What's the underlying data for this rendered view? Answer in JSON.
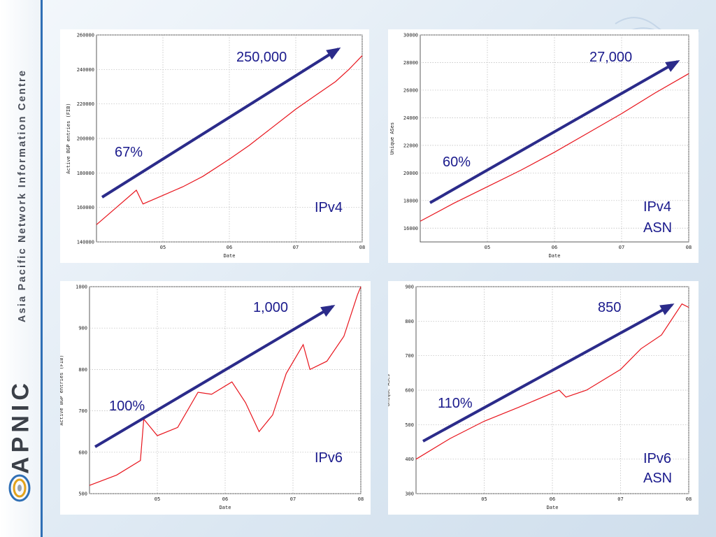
{
  "sidebar": {
    "organization": "Asia Pacific Network Information Centre",
    "brand": "APNIC",
    "accent_color": "#2f6fb5"
  },
  "colors": {
    "line": "#e8141c",
    "arrow": "#2b2b8a",
    "annotation": "#1a1a8c"
  },
  "chart_data": [
    {
      "type": "line",
      "xlabel": "Date",
      "ylabel": "Active BGP entries (FIB)",
      "x_ticks": [
        "05",
        "06",
        "07",
        "08"
      ],
      "xlim": [
        2004.0,
        2008.0
      ],
      "ylim": [
        140000,
        260000
      ],
      "y_ticks": [
        140000,
        160000,
        180000,
        200000,
        220000,
        240000,
        260000
      ],
      "grid": true,
      "series": [
        {
          "x": [
            2004.0,
            2004.3,
            2004.6,
            2004.7,
            2005.0,
            2005.3,
            2005.6,
            2006.0,
            2006.3,
            2006.6,
            2007.0,
            2007.3,
            2007.6,
            2007.8,
            2008.0
          ],
          "y": [
            150000,
            160000,
            170000,
            162000,
            167000,
            172000,
            178000,
            188000,
            196000,
            205000,
            217000,
            225000,
            233000,
            240000,
            248000
          ]
        }
      ],
      "annotations": {
        "growth": "67%",
        "target": "250,000",
        "label_lines": [
          "IPv4"
        ]
      }
    },
    {
      "type": "line",
      "xlabel": "Date",
      "ylabel": "Unique ASes",
      "x_ticks": [
        "05",
        "06",
        "07",
        "08"
      ],
      "xlim": [
        2004.0,
        2008.0
      ],
      "ylim": [
        15000,
        30000
      ],
      "y_ticks": [
        16000,
        18000,
        20000,
        22000,
        24000,
        26000,
        28000,
        30000
      ],
      "grid": true,
      "series": [
        {
          "x": [
            2004.0,
            2004.5,
            2005.0,
            2005.5,
            2006.0,
            2006.5,
            2007.0,
            2007.5,
            2008.0
          ],
          "y": [
            16500,
            17800,
            19000,
            20200,
            21500,
            22900,
            24300,
            25800,
            27200
          ]
        }
      ],
      "annotations": {
        "growth": "60%",
        "target": "27,000",
        "label_lines": [
          "IPv4",
          "ASN"
        ]
      }
    },
    {
      "type": "line",
      "xlabel": "Date",
      "ylabel": "Active BGP entries (FIB)",
      "x_ticks": [
        "05",
        "06",
        "07",
        "08"
      ],
      "xlim": [
        2004.0,
        2008.0
      ],
      "ylim": [
        500,
        1000
      ],
      "y_ticks": [
        500,
        600,
        700,
        800,
        900,
        1000
      ],
      "grid": true,
      "series": [
        {
          "x": [
            2004.0,
            2004.4,
            2004.75,
            2004.8,
            2005.0,
            2005.3,
            2005.6,
            2005.8,
            2006.1,
            2006.3,
            2006.5,
            2006.7,
            2006.9,
            2007.15,
            2007.25,
            2007.5,
            2007.75,
            2007.95,
            2008.0
          ],
          "y": [
            520,
            545,
            580,
            680,
            640,
            660,
            745,
            740,
            770,
            720,
            650,
            690,
            790,
            860,
            800,
            820,
            880,
            980,
            1000
          ]
        }
      ],
      "annotations": {
        "growth": "100%",
        "target": "1,000",
        "label_lines": [
          "IPv6"
        ]
      }
    },
    {
      "type": "line",
      "xlabel": "Date",
      "ylabel": "Unique ASes",
      "x_ticks": [
        "05",
        "06",
        "07",
        "08"
      ],
      "xlim": [
        2004.0,
        2008.0
      ],
      "ylim": [
        300,
        900
      ],
      "y_ticks": [
        300,
        400,
        500,
        600,
        700,
        800,
        900
      ],
      "grid": true,
      "series": [
        {
          "x": [
            2004.0,
            2004.5,
            2005.0,
            2005.5,
            2006.1,
            2006.2,
            2006.5,
            2007.0,
            2007.3,
            2007.6,
            2007.9,
            2008.0
          ],
          "y": [
            400,
            460,
            510,
            550,
            600,
            580,
            600,
            660,
            720,
            760,
            850,
            840
          ]
        }
      ],
      "annotations": {
        "growth": "110%",
        "target": "850",
        "label_lines": [
          "IPv6",
          "ASN"
        ]
      }
    }
  ]
}
